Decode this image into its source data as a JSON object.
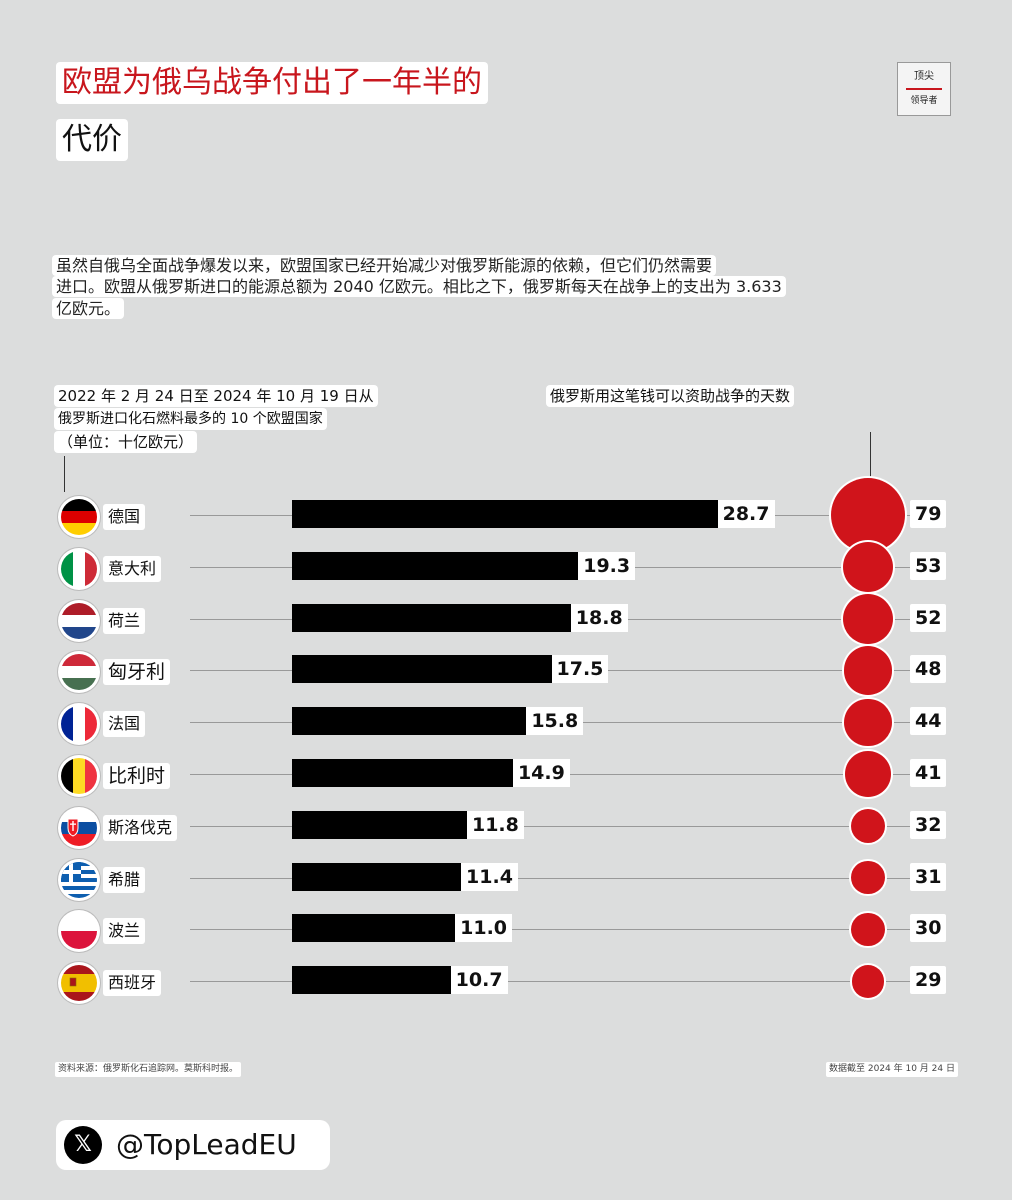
{
  "header": {
    "title_line1": "欧盟为俄乌战争付出了一年半的",
    "title_line2": "代价",
    "logo_top": "顶尖",
    "logo_bottom": "领导者"
  },
  "intro": {
    "line1": "虽然自俄乌全面战争爆发以来，欧盟国家已经开始减少对俄罗斯能源的依赖，但它们仍然需要",
    "line2": "进口。欧盟从俄罗斯进口的能源总额为 2040 亿欧元。相比之下，俄罗斯每天在战争上的支出为 3.633",
    "line3": "亿欧元。"
  },
  "chart_data": {
    "type": "bar",
    "left_header": [
      "2022 年 2 月 24 日至 2024 年 10 月 19 日从",
      "俄罗斯进口化石燃料最多的 10 个欧盟国家",
      "（单位：十亿欧元）"
    ],
    "right_header": "俄罗斯用这笔钱可以资助战争的天数",
    "categories": [
      "德国",
      "意大利",
      "荷兰",
      "匈牙利",
      "法国",
      "比利时",
      "斯洛伐克",
      "希腊",
      "波兰",
      "西班牙"
    ],
    "values": [
      "28.7",
      "19.3",
      "18.8",
      "17.5",
      "15.8",
      "14.9",
      "11.8",
      "11.4",
      "11.0",
      "10.7"
    ],
    "days": [
      "79",
      "53",
      "52",
      "48",
      "44",
      "41",
      "32",
      "31",
      "30",
      "29"
    ],
    "bar_color": "#000000",
    "dot_color": "#d0141b",
    "flags": [
      "germany-flag-icon",
      "italy-flag-icon",
      "netherlands-flag-icon",
      "hungary-flag-icon",
      "france-flag-icon",
      "belgium-flag-icon",
      "slovakia-flag-icon",
      "greece-flag-icon",
      "poland-flag-icon",
      "spain-flag-icon"
    ]
  },
  "footer": {
    "source": "资料来源：俄罗斯化石追踪网。莫斯科时报。",
    "as_of": "数据截至 2024 年 10 月 24 日",
    "handle": "@TopLeadEU",
    "x_glyph": "𝕏"
  }
}
